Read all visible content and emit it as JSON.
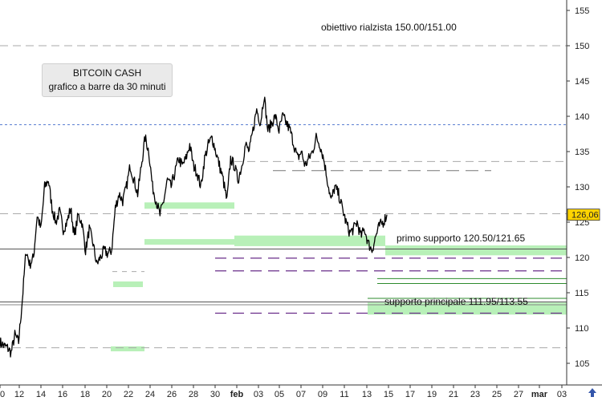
{
  "chart_data": {
    "type": "line",
    "title_line1": "BITCOIN CASH",
    "title_line2": "grafico a barre da 30 minuti",
    "xlabel": "",
    "ylabel": "",
    "ylim": [
      103,
      156
    ],
    "y_ticks": [
      105,
      110,
      115,
      120,
      125,
      130,
      135,
      140,
      145,
      150,
      155
    ],
    "x_ticks": [
      "0",
      "12",
      "14",
      "16",
      "18",
      "20",
      "22",
      "24",
      "26",
      "28",
      "30",
      "feb",
      "03",
      "05",
      "07",
      "09",
      "11",
      "13",
      "15",
      "17",
      "19",
      "21",
      "23",
      "25",
      "27",
      "mar",
      "03"
    ],
    "last_price": "126,06",
    "series": [
      {
        "values": [
          108,
          107.5,
          107.2,
          106.5,
          109,
          108,
          114,
          121,
          119,
          120,
          126,
          124,
          130,
          131,
          127,
          125,
          126.5,
          124,
          125,
          127,
          123,
          126,
          125,
          121,
          124,
          122,
          119,
          120,
          121,
          120.5,
          121,
          127,
          129,
          128,
          130,
          133,
          131,
          129,
          133,
          137,
          135,
          130,
          128,
          126,
          128,
          131,
          130,
          132,
          134,
          133,
          134,
          136,
          133,
          132,
          130,
          134,
          136,
          137,
          135,
          133,
          131,
          128,
          134,
          133,
          131,
          133,
          136,
          135,
          138,
          141,
          139,
          143,
          138,
          139,
          140,
          138,
          140,
          139,
          138,
          136,
          134,
          135,
          133,
          134,
          135,
          137,
          136,
          134,
          131,
          128,
          130,
          129,
          127,
          125,
          123.5,
          124,
          125,
          123,
          124,
          122,
          121,
          123,
          124.5,
          125,
          126.06
        ]
      }
    ],
    "horizontal_levels": [
      {
        "value": 150,
        "label": "obiettivo rialzista 150.00/151.00"
      },
      {
        "value": 121.65,
        "label": "primo supporto 120.50/121.65"
      },
      {
        "value": 113.55,
        "label": "supporto principale 111.95/113.55"
      }
    ],
    "colors": {
      "price": "#000000",
      "zone": "#b8f0b8",
      "blue_dash": "#5b7fd1",
      "purple_dash": "#6a2e8a",
      "green_line": "#2e8b2e",
      "grid_dash": "#aaaaaa",
      "price_tag": "#ffd400"
    }
  }
}
